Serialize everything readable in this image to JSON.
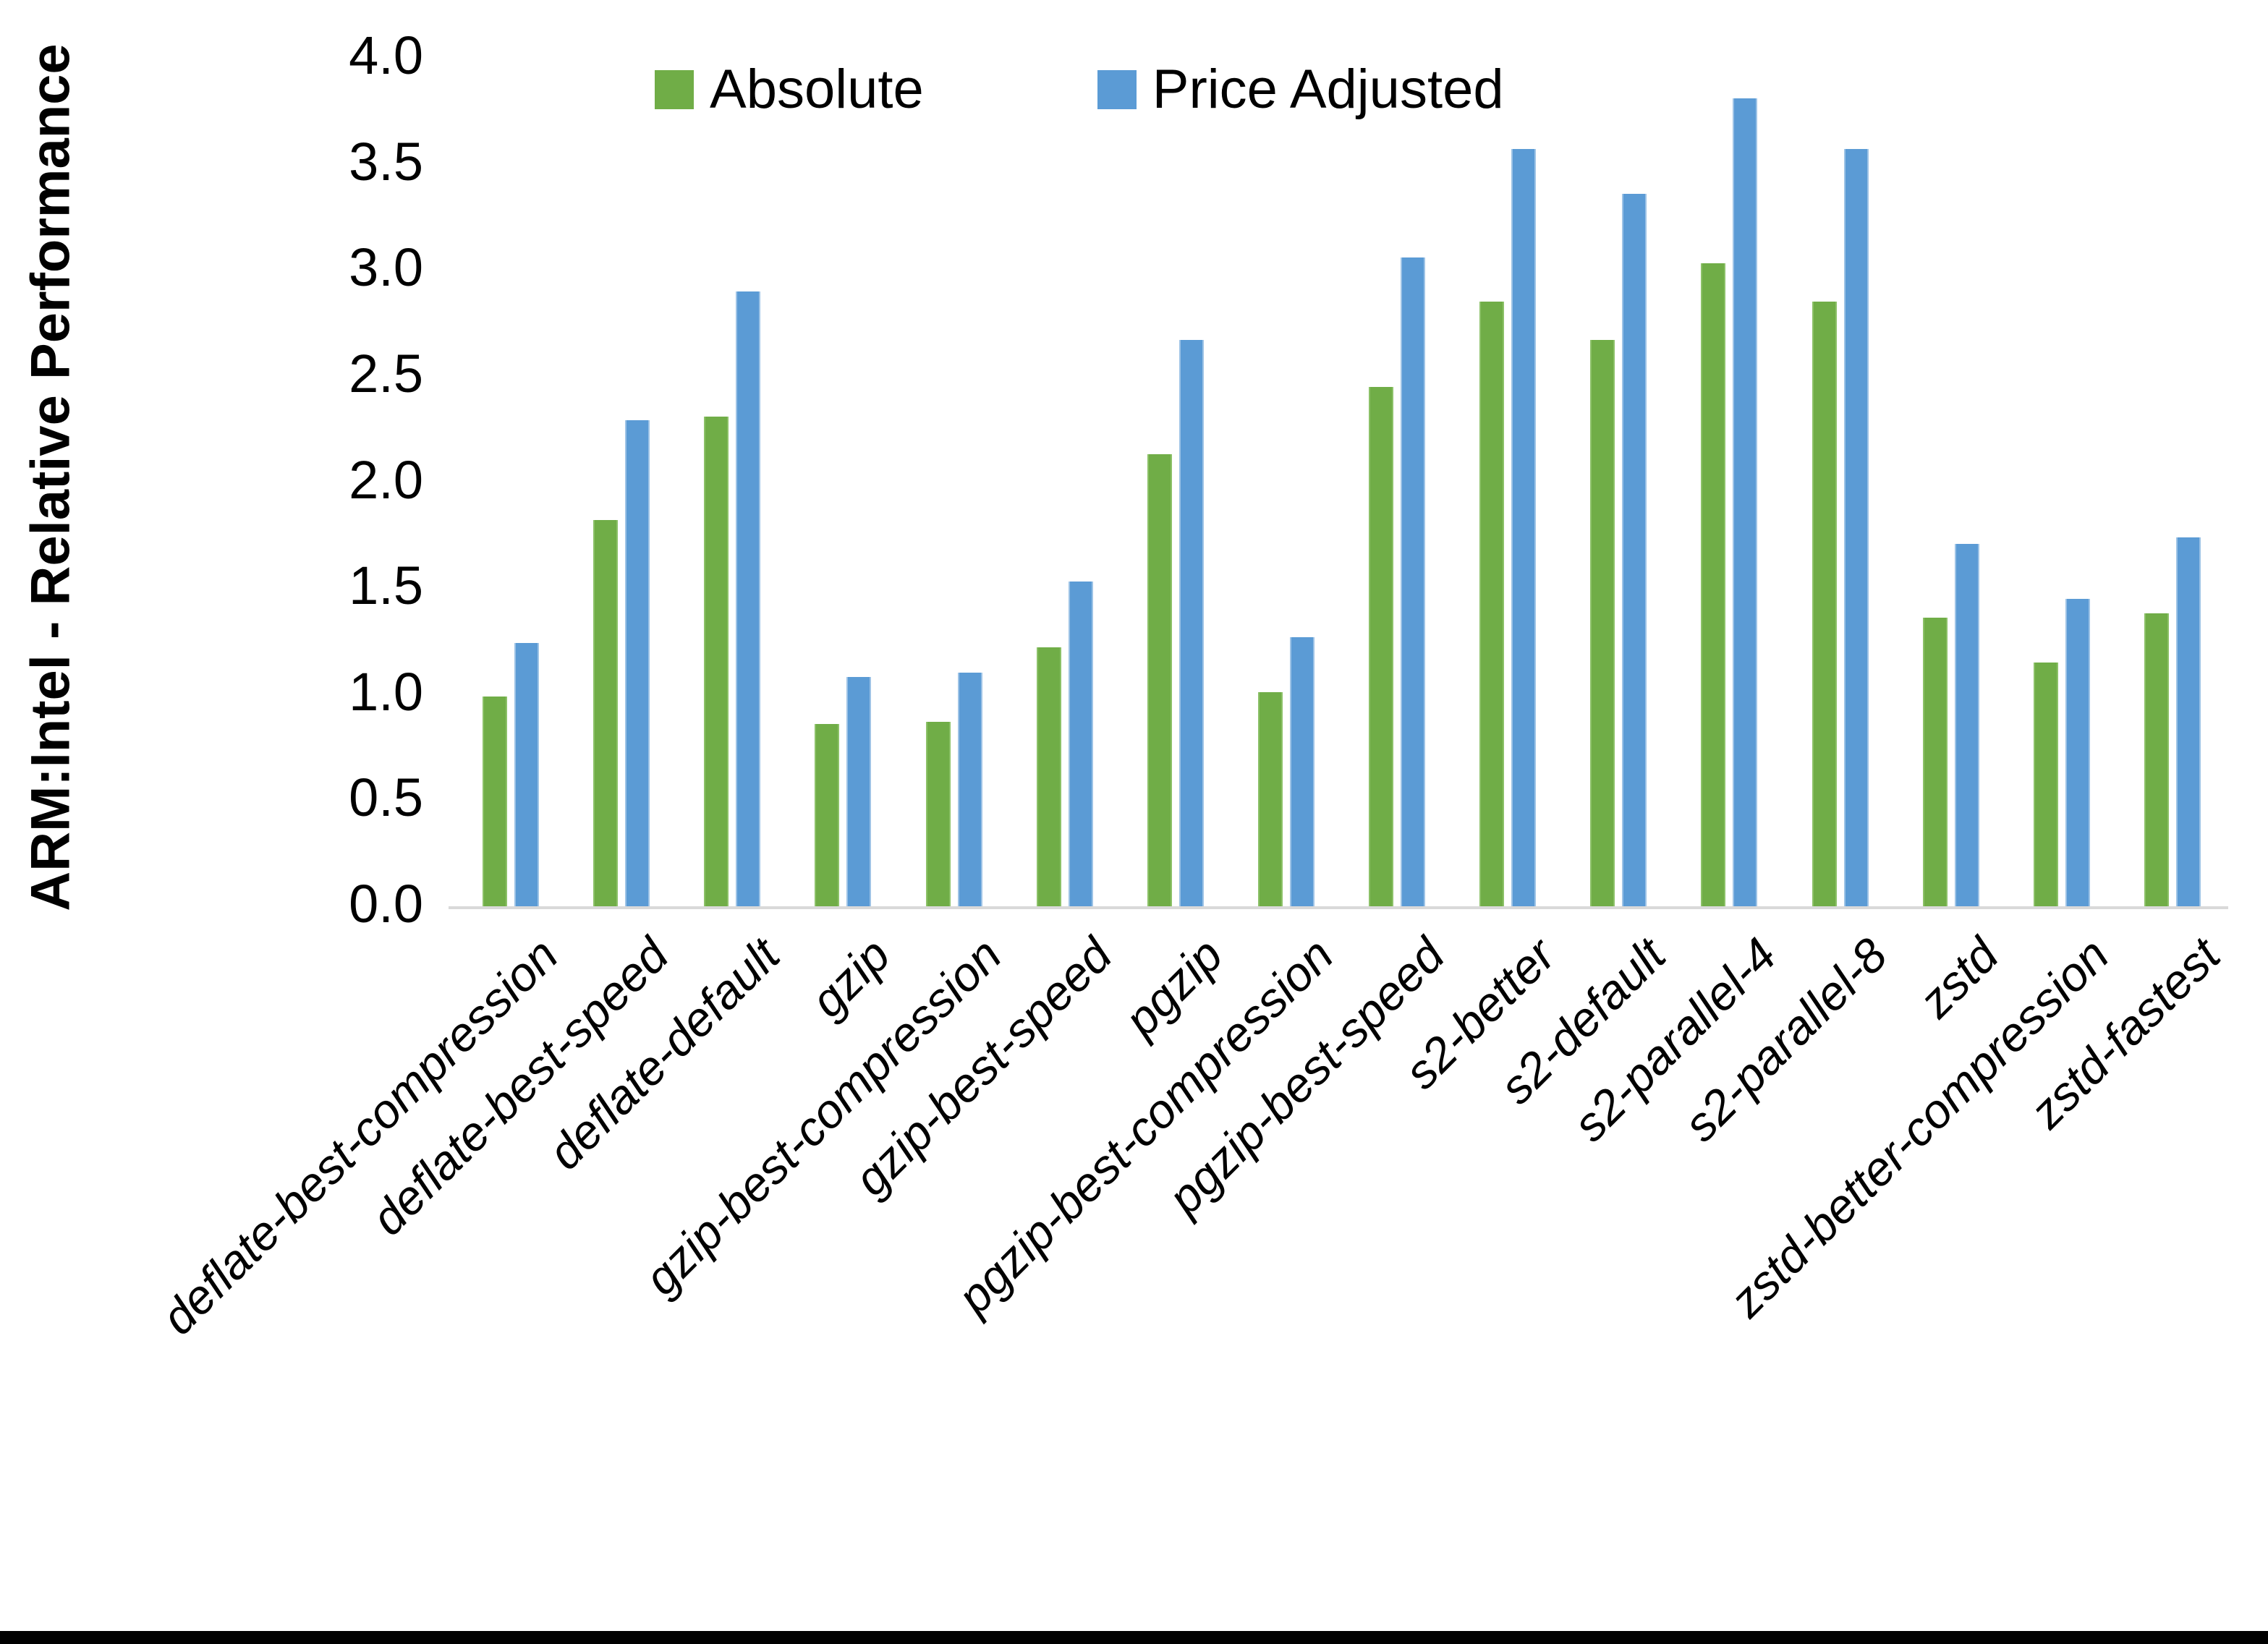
{
  "chart_data": {
    "type": "bar",
    "title": "",
    "ylabel": "ARM:Intel - Relative Performance",
    "xlabel": "",
    "ylim": [
      0.0,
      4.0
    ],
    "ytick_step": 0.5,
    "ytick_labels": [
      "0.0",
      "0.5",
      "1.0",
      "1.5",
      "2.0",
      "2.5",
      "3.0",
      "3.5",
      "4.0"
    ],
    "grid": false,
    "legend_position": "top-inside",
    "categories": [
      "deflate-best-compression",
      "deflate-best-speed",
      "deflate-default",
      "gzip",
      "gzip-best-compression",
      "gzip-best-speed",
      "pgzip",
      "pgzip-best-compression",
      "pgzip-best-speed",
      "s2-better",
      "s2-default",
      "s2-parallel-4",
      "s2-parallel-8",
      "zstd",
      "zstd-better-compression",
      "zstd-fastest"
    ],
    "series": [
      {
        "name": "Absolute",
        "color": "#70AD47",
        "values": [
          0.99,
          1.82,
          2.31,
          0.86,
          0.87,
          1.22,
          2.13,
          1.01,
          2.45,
          2.85,
          2.67,
          3.03,
          2.85,
          1.36,
          1.15,
          1.38
        ]
      },
      {
        "name": "Price Adjusted",
        "color": "#5B9BD5",
        "values": [
          1.24,
          2.29,
          2.9,
          1.08,
          1.1,
          1.53,
          2.67,
          1.27,
          3.06,
          3.57,
          3.36,
          3.81,
          3.57,
          1.71,
          1.45,
          1.74
        ]
      }
    ]
  },
  "styles": {
    "axis_line_color": "#D9D9D9",
    "background_color": "#FFFFFF",
    "bottom_bar_color": "#000000",
    "text_color": "#000000"
  }
}
